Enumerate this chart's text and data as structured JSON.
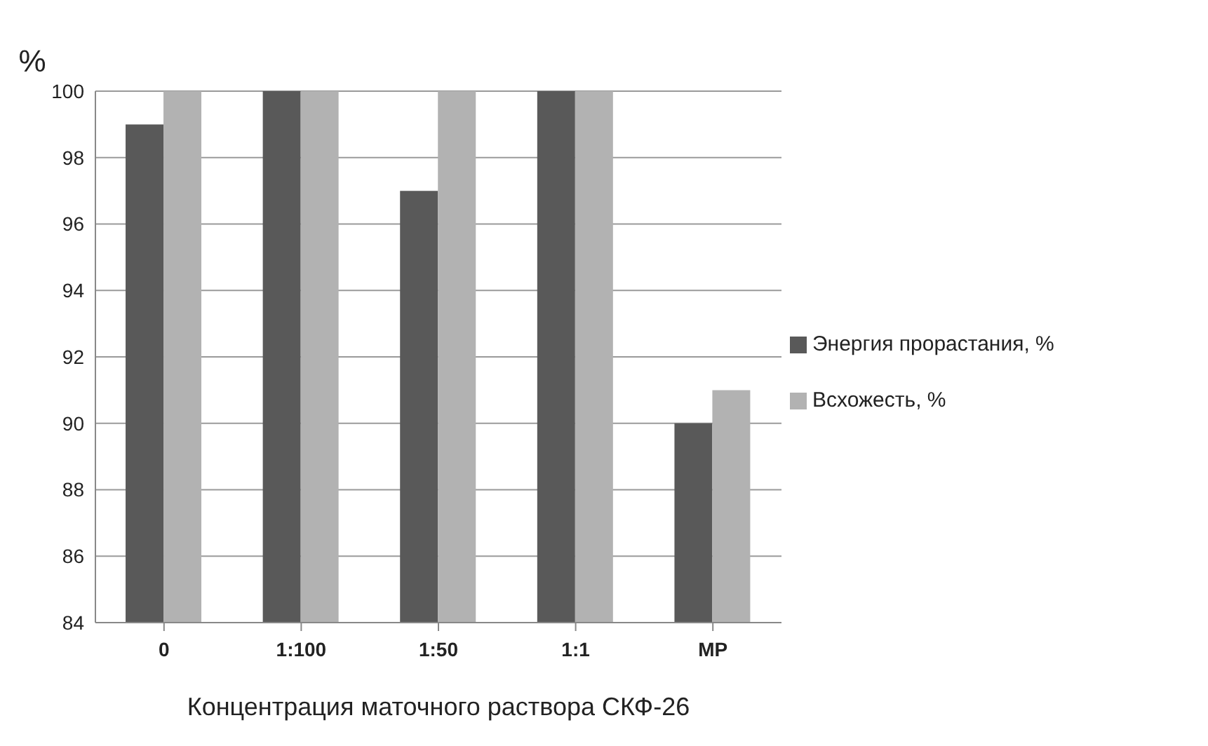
{
  "chart_data": {
    "type": "bar",
    "ylabel": "%",
    "xlabel": "Концентрация маточного раствора СКФ-26",
    "categories": [
      "0",
      "1:100",
      "1:50",
      "1:1",
      "МР"
    ],
    "series": [
      {
        "name": "Энергия прорастания, %",
        "color": "#595959",
        "values": [
          99,
          100,
          97,
          100,
          90
        ]
      },
      {
        "name": "Всхожесть, %",
        "color": "#b2b2b2",
        "values": [
          100,
          100,
          100,
          100,
          91
        ]
      }
    ],
    "ylim": [
      84,
      100
    ],
    "yticks": [
      84,
      86,
      88,
      90,
      92,
      94,
      96,
      98,
      100
    ],
    "grid": "y",
    "legend": "right"
  }
}
